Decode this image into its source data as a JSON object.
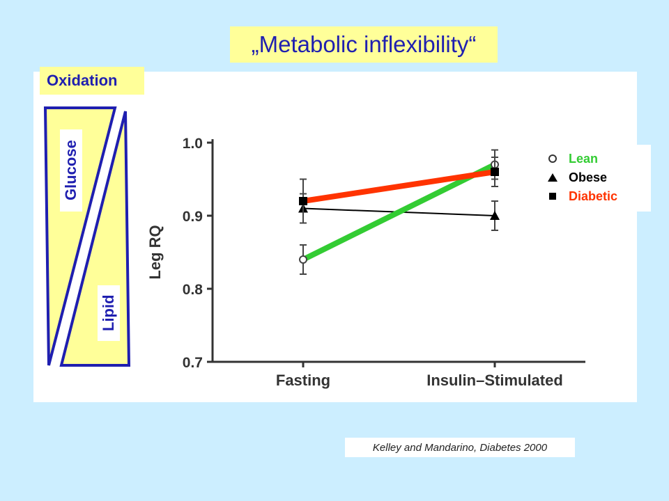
{
  "title": "„Metabolic inflexibility“",
  "oxidation_label": "Oxidation",
  "wedge": {
    "top_label": "Glucose",
    "bottom_label": "Lipid"
  },
  "citation": "Kelley and Mandarino, Diabetes 2000",
  "colors": {
    "background": "#cceeff",
    "highlight": "#ffff99",
    "title_text": "#1f1fb0",
    "lean": "#33cc33",
    "obese": "#000000",
    "diabetic": "#ff3300"
  },
  "legend": [
    {
      "label": "Lean",
      "symbol": "open-circle-icon",
      "color": "#33cc33"
    },
    {
      "label": "Obese",
      "symbol": "filled-triangle-icon",
      "color": "#000000"
    },
    {
      "label": "Diabetic",
      "symbol": "filled-square-icon",
      "color": "#ff3300"
    }
  ],
  "chart_data": {
    "type": "line",
    "title": "",
    "xlabel": "",
    "ylabel": "Leg RQ",
    "categories": [
      "Fasting",
      "Insulin–Stimulated"
    ],
    "ylim": [
      0.7,
      1.0
    ],
    "yticks": [
      "0.7",
      "0.8",
      "0.9",
      "1.0"
    ],
    "legend_position": "top-right",
    "grid": false,
    "series": [
      {
        "name": "Lean",
        "marker": "open-circle",
        "color": "#33cc33",
        "values": [
          0.84,
          0.97
        ],
        "errors": [
          0.02,
          0.02
        ]
      },
      {
        "name": "Obese",
        "marker": "triangle",
        "color": "#000000",
        "values": [
          0.91,
          0.9
        ],
        "errors": [
          0.02,
          0.02
        ]
      },
      {
        "name": "Diabetic",
        "marker": "square",
        "color": "#ff3300",
        "values": [
          0.92,
          0.96
        ],
        "errors": [
          0.03,
          0.02
        ]
      }
    ]
  }
}
